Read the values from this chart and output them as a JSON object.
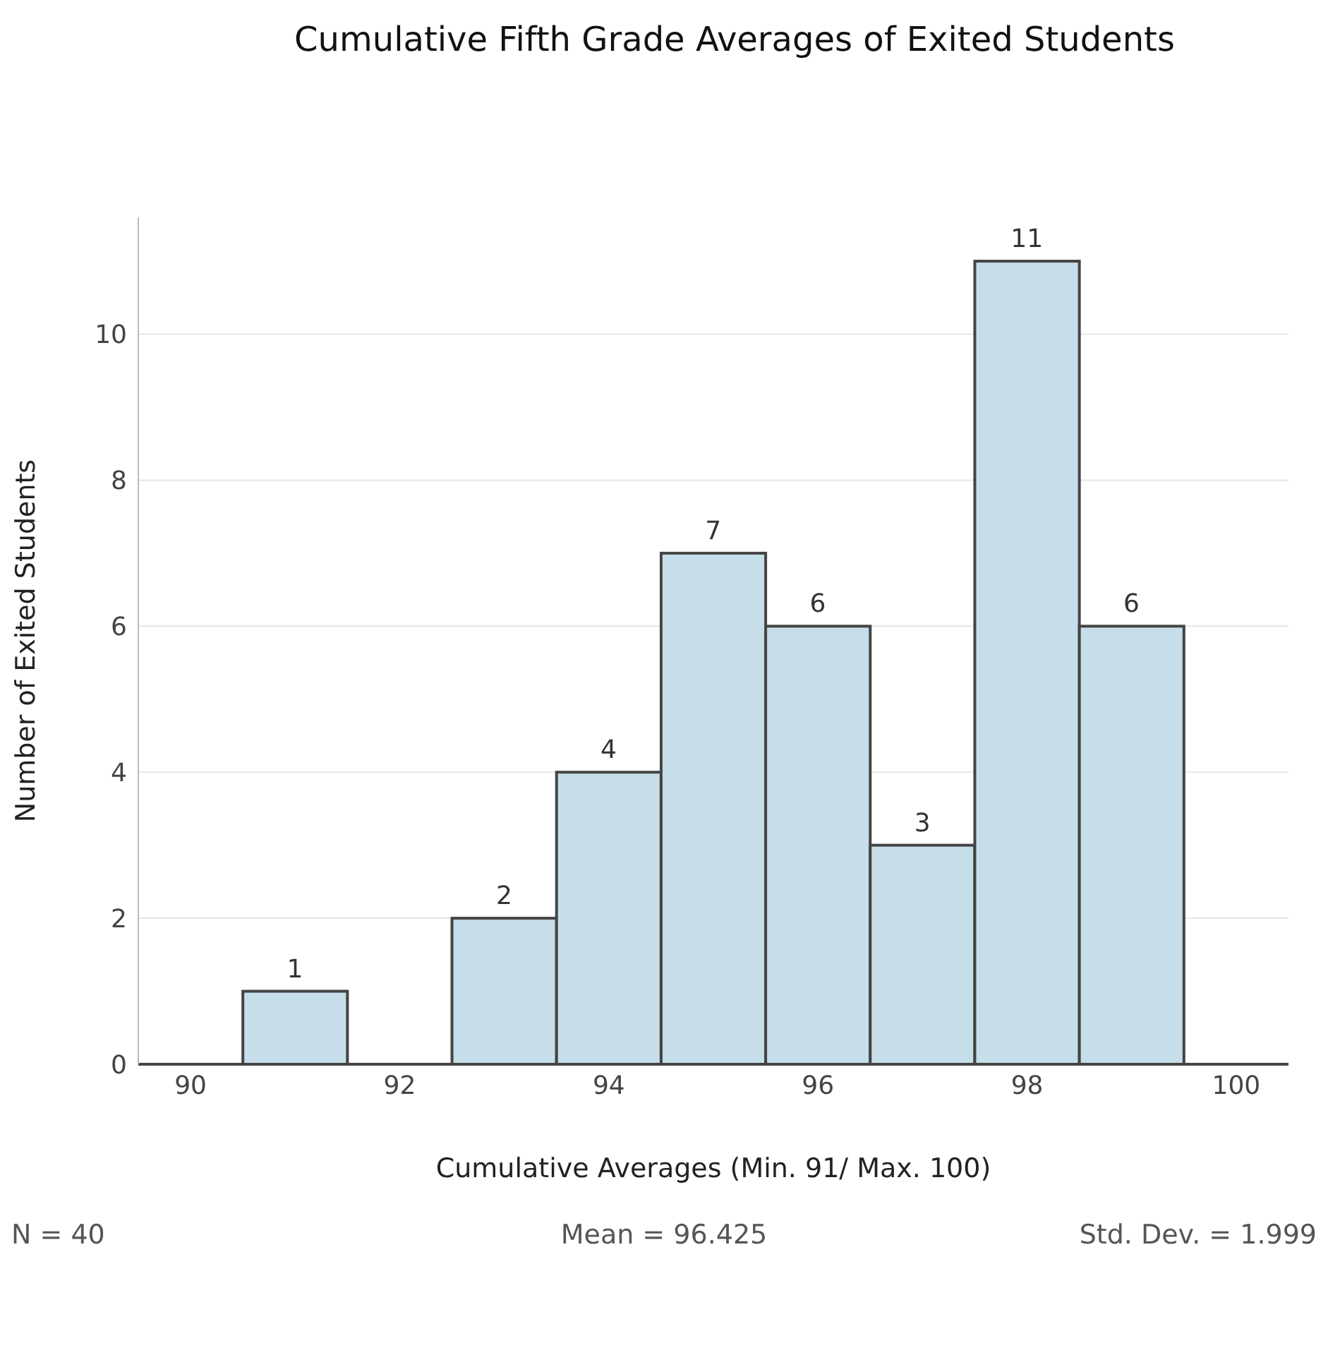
{
  "chart_data": {
    "type": "histogram",
    "title": "Cumulative Fifth Grade Averages of Exited Students",
    "xlabel": "Cumulative Averages (Min. 91/ Max. 100)",
    "ylabel": "Number of Exited Students",
    "bins": [
      90.5,
      91.5,
      92.5,
      93.5,
      94.5,
      95.5,
      96.5,
      97.5,
      98.5,
      99.5
    ],
    "values": [
      1,
      0,
      2,
      4,
      7,
      6,
      3,
      11,
      6
    ],
    "value_labels": [
      "1",
      null,
      "2",
      "4",
      "7",
      "6",
      "3",
      "11",
      "6"
    ],
    "color": "#c6deea",
    "xlim": [
      89.5,
      100.5
    ],
    "xticks": [
      90,
      92,
      94,
      96,
      98,
      100
    ],
    "ylim": [
      0,
      11.6
    ],
    "yticks": [
      0,
      2,
      4,
      6,
      8,
      10
    ],
    "grid": "y",
    "annotations": [
      "N = 40",
      "Mean = 96.425",
      "Std. Dev. = 1.999"
    ]
  }
}
